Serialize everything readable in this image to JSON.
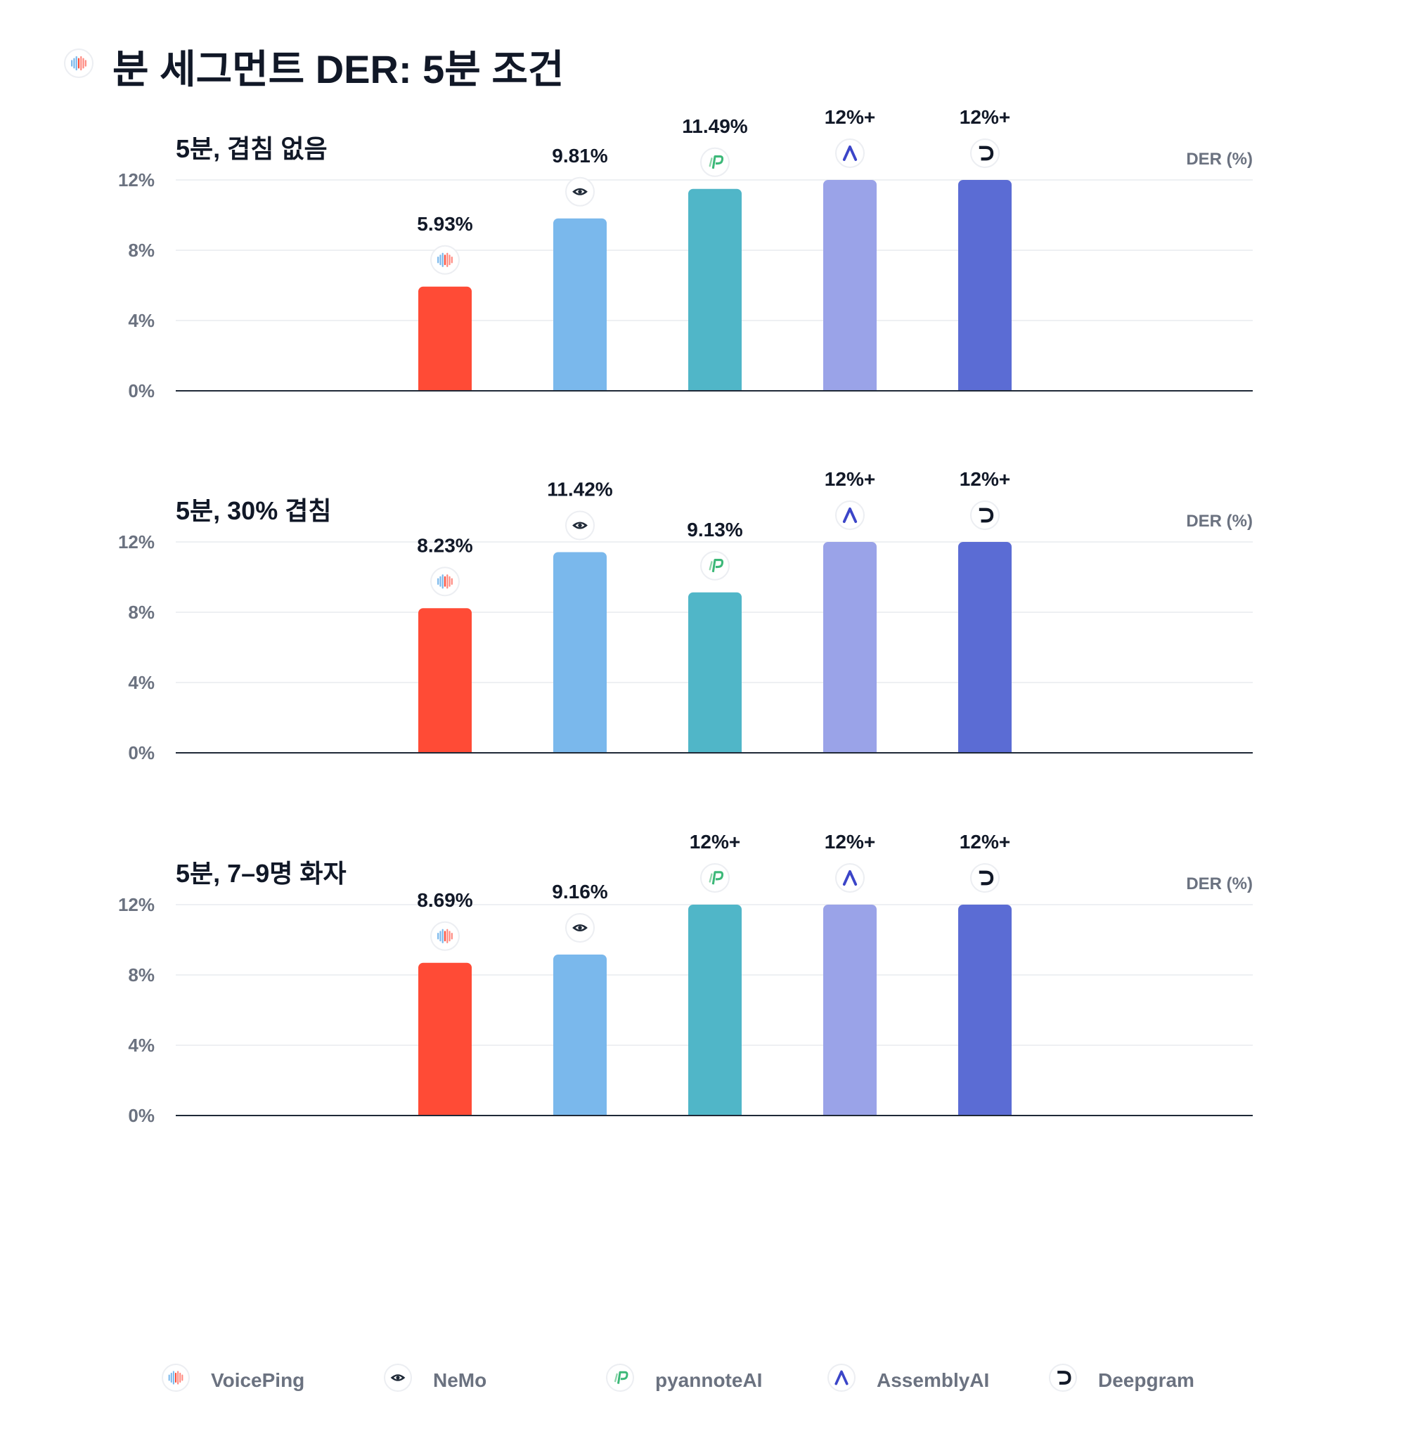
{
  "title": "분 세그먼트 DER: 5분 조건",
  "y_unit_label": "DER (%)",
  "colors": {
    "VoicePing": "#FF4B36",
    "NeMo": "#7AB8EC",
    "pyannoteAI": "#50B6C8",
    "AssemblyAI": "#9AA3E8",
    "Deepgram": "#5B6CD4",
    "axis": "#1f2937",
    "grid": "#eef0f3",
    "tick": "#6b7280",
    "label": "#111827"
  },
  "legend": [
    {
      "name": "VoicePing",
      "icon": "voiceping-waveform-icon"
    },
    {
      "name": "NeMo",
      "icon": "nemo-eye-icon"
    },
    {
      "name": "pyannoteAI",
      "icon": "pyannote-p-icon"
    },
    {
      "name": "AssemblyAI",
      "icon": "assemblyai-a-icon"
    },
    {
      "name": "Deepgram",
      "icon": "deepgram-d-icon"
    }
  ],
  "chart_data": [
    {
      "type": "bar",
      "title": "5분, 겹침 없음",
      "ylabel": "DER (%)",
      "ylim": [
        0,
        12
      ],
      "yticks": [
        "0%",
        "4%",
        "8%",
        "12%"
      ],
      "categories": [
        "VoicePing",
        "NeMo",
        "pyannoteAI",
        "AssemblyAI",
        "Deepgram"
      ],
      "values": [
        5.93,
        9.81,
        11.49,
        12,
        12
      ],
      "data_labels": [
        "5.93%",
        "9.81%",
        "11.49%",
        "12%+",
        "12%+"
      ]
    },
    {
      "type": "bar",
      "title": "5분, 30% 겹침",
      "ylabel": "DER (%)",
      "ylim": [
        0,
        12
      ],
      "yticks": [
        "0%",
        "4%",
        "8%",
        "12%"
      ],
      "categories": [
        "VoicePing",
        "NeMo",
        "pyannoteAI",
        "AssemblyAI",
        "Deepgram"
      ],
      "values": [
        8.23,
        11.42,
        9.13,
        12,
        12
      ],
      "data_labels": [
        "8.23%",
        "11.42%",
        "9.13%",
        "12%+",
        "12%+"
      ]
    },
    {
      "type": "bar",
      "title": "5분, 7–9명 화자",
      "ylabel": "DER (%)",
      "ylim": [
        0,
        12
      ],
      "yticks": [
        "0%",
        "4%",
        "8%",
        "12%"
      ],
      "categories": [
        "VoicePing",
        "NeMo",
        "pyannoteAI",
        "AssemblyAI",
        "Deepgram"
      ],
      "values": [
        8.69,
        9.16,
        12,
        12,
        12
      ],
      "data_labels": [
        "8.69%",
        "9.16%",
        "12%+",
        "12%+",
        "12%+"
      ]
    }
  ]
}
